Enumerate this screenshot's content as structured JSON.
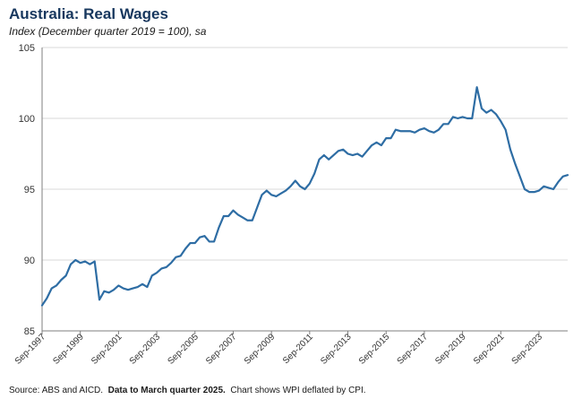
{
  "chart_data": {
    "type": "line",
    "title": "Australia: Real Wages",
    "subtitle": "Index (December quarter 2019 = 100), sa",
    "xlabel": "",
    "ylabel": "",
    "ylim": [
      85,
      105
    ],
    "yticks": [
      85,
      90,
      95,
      100,
      105
    ],
    "xticks": [
      "Sep-1997",
      "Sep-1999",
      "Sep-2001",
      "Sep-2003",
      "Sep-2005",
      "Sep-2007",
      "Sep-2009",
      "Sep-2011",
      "Sep-2013",
      "Sep-2015",
      "Sep-2017",
      "Sep-2019",
      "Sep-2021",
      "Sep-2023"
    ],
    "grid": true,
    "legend": "none",
    "x_start": "Sep-1997",
    "x_end": "Mar-2025",
    "series": [
      {
        "color": "#2e6da4",
        "values": [
          86.8,
          87.3,
          88.0,
          88.2,
          88.6,
          88.9,
          89.7,
          90.0,
          89.8,
          89.9,
          89.7,
          89.9,
          87.2,
          87.8,
          87.7,
          87.9,
          88.2,
          88.0,
          87.9,
          88.0,
          88.1,
          88.3,
          88.1,
          88.9,
          89.1,
          89.4,
          89.5,
          89.8,
          90.2,
          90.3,
          90.8,
          91.2,
          91.2,
          91.6,
          91.7,
          91.3,
          91.3,
          92.3,
          93.1,
          93.1,
          93.5,
          93.2,
          93.0,
          92.8,
          92.8,
          93.7,
          94.6,
          94.9,
          94.6,
          94.5,
          94.7,
          94.9,
          95.2,
          95.6,
          95.2,
          95.0,
          95.4,
          96.1,
          97.1,
          97.4,
          97.1,
          97.4,
          97.7,
          97.8,
          97.5,
          97.4,
          97.5,
          97.3,
          97.7,
          98.1,
          98.3,
          98.1,
          98.6,
          98.6,
          99.2,
          99.1,
          99.1,
          99.1,
          99.0,
          99.2,
          99.3,
          99.1,
          99.0,
          99.2,
          99.6,
          99.6,
          100.1,
          100.0,
          100.1,
          100.0,
          100.0,
          102.2,
          100.7,
          100.4,
          100.6,
          100.3,
          99.8,
          99.2,
          97.8,
          96.8,
          95.9,
          95.0,
          94.8,
          94.8,
          94.9,
          95.2,
          95.1,
          95.0,
          95.5,
          95.9,
          96.0
        ]
      }
    ]
  },
  "footnote": {
    "source": "Source: ABS and AICD.",
    "data_note": "Data to March quarter 2025.",
    "chart_note": "Chart shows WPI deflated by CPI."
  }
}
